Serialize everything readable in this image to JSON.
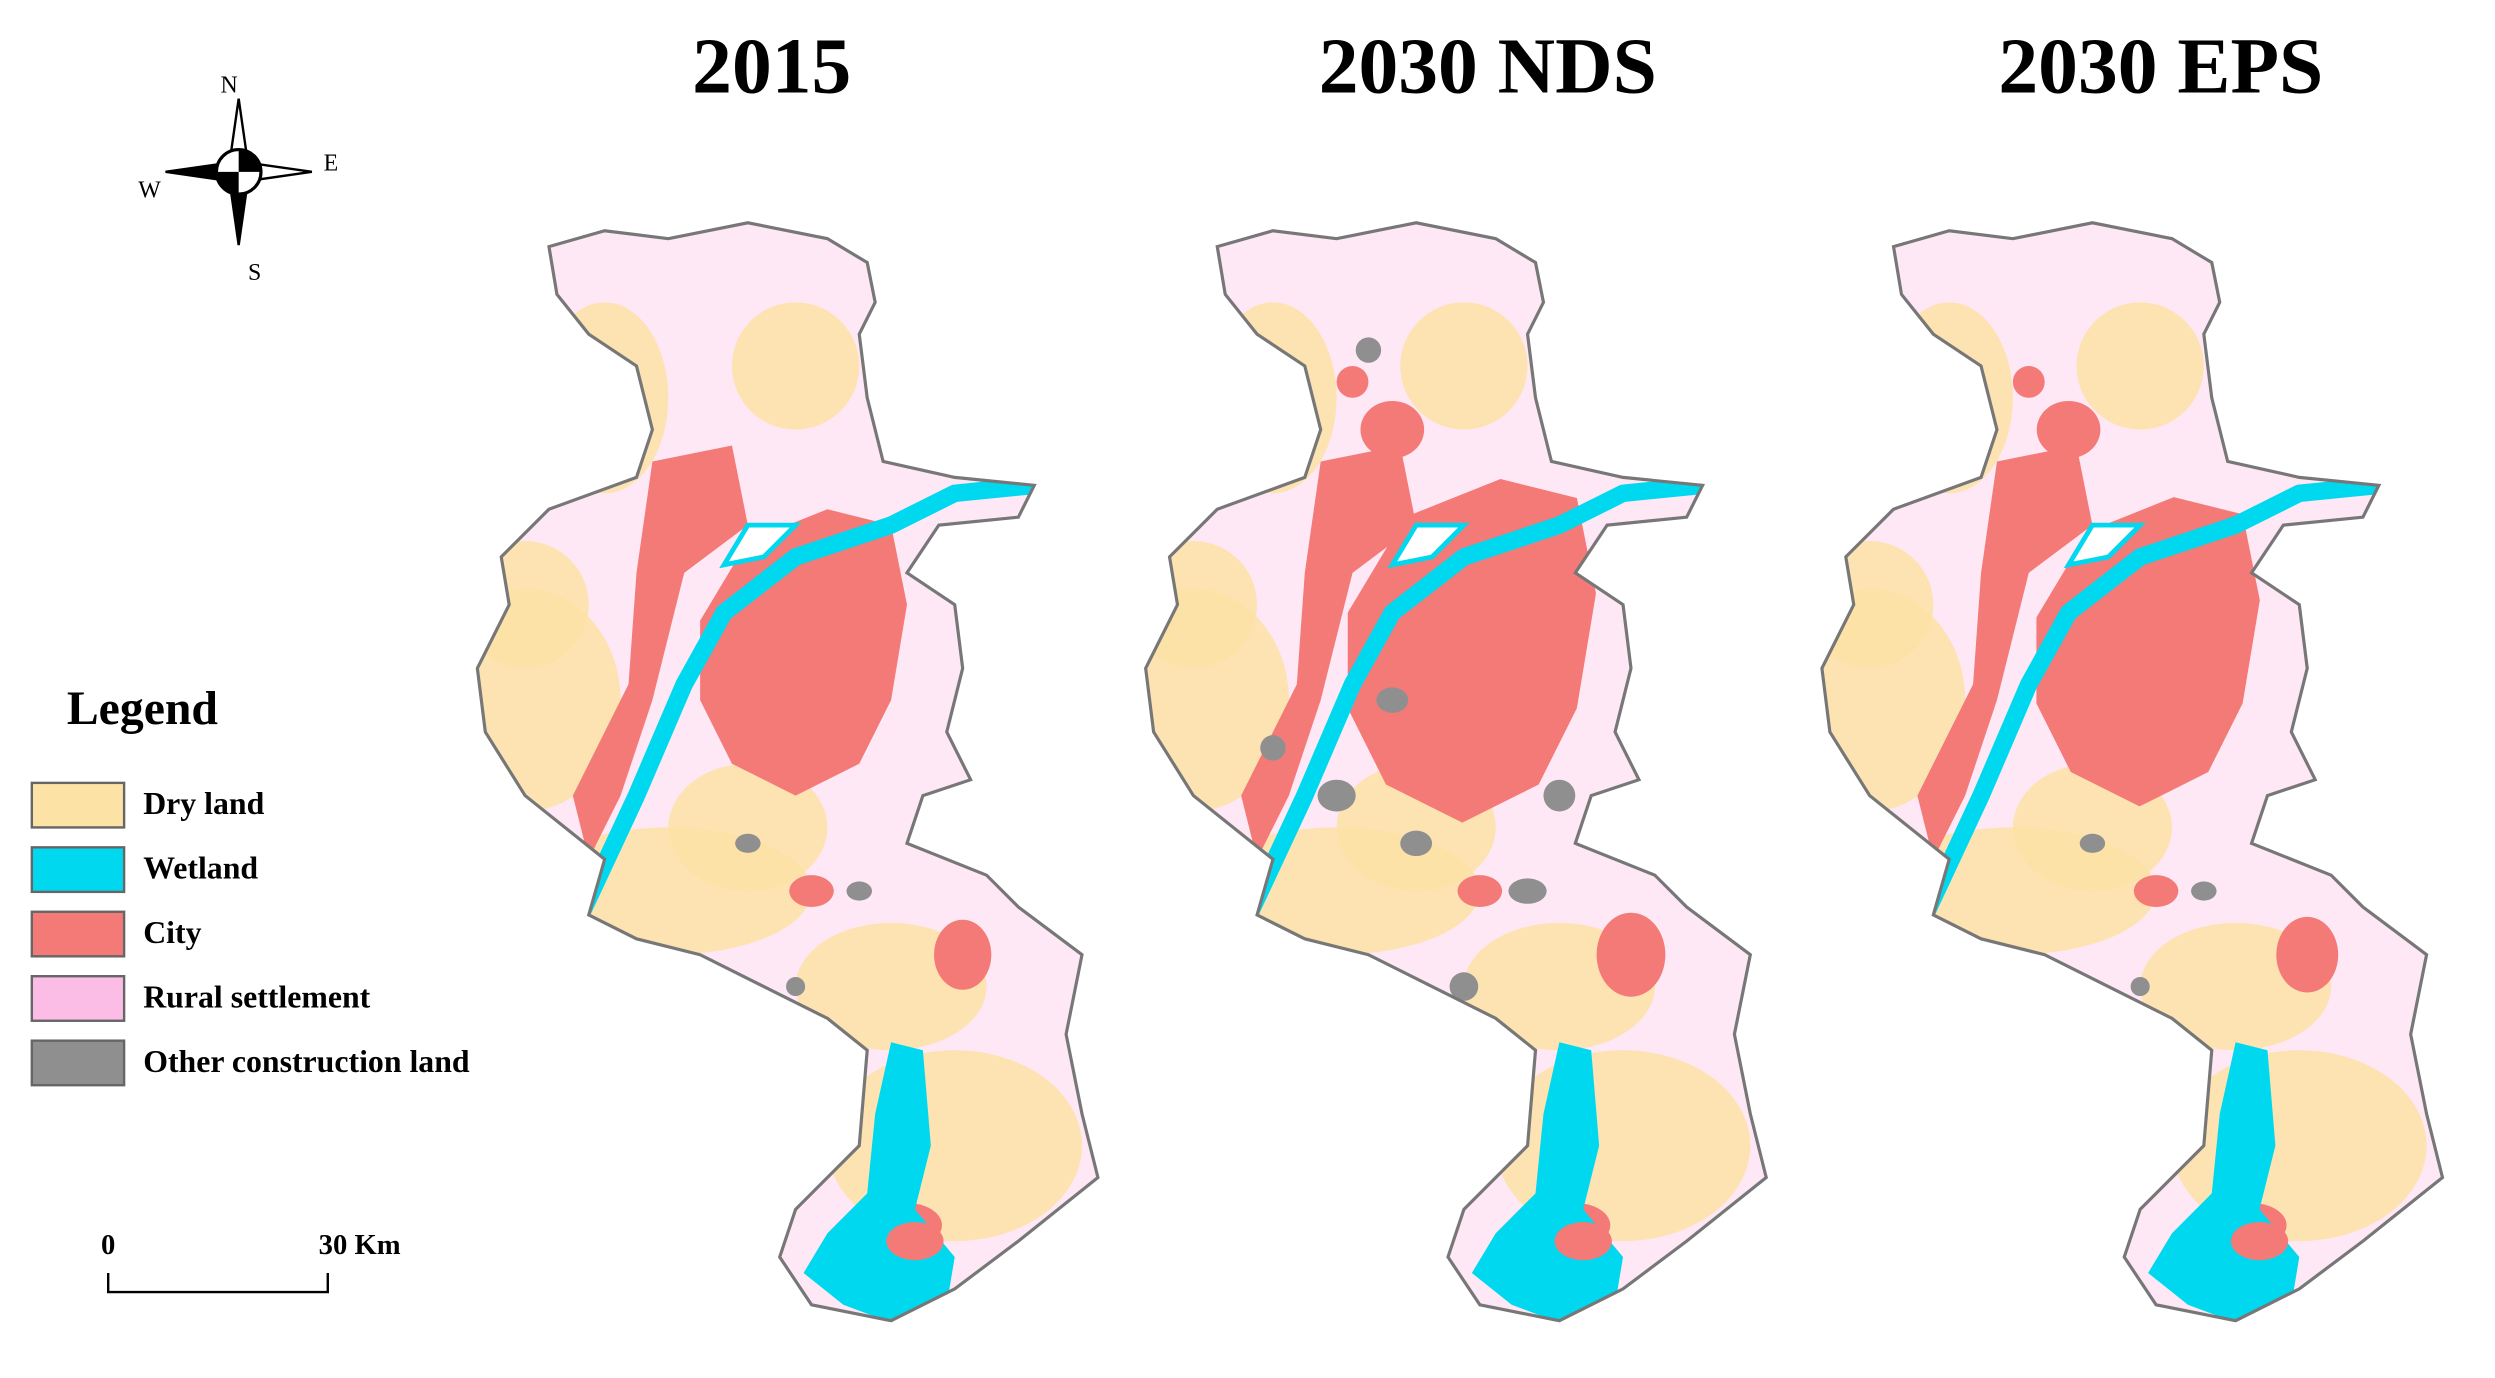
{
  "maps": [
    {
      "title": "2015"
    },
    {
      "title": "2030 NDS"
    },
    {
      "title": "2030 EPS"
    }
  ],
  "compass": {
    "n": "N",
    "e": "E",
    "s": "S",
    "w": "W"
  },
  "legend": {
    "title": "Legend",
    "items": [
      {
        "label": "Dry land",
        "color": "#fde2a6"
      },
      {
        "label": "Wetland",
        "color": "#00d8f0"
      },
      {
        "label": "City",
        "color": "#f47a78"
      },
      {
        "label": "Rural settlement",
        "color": "#fbbde6"
      },
      {
        "label": "Other construction land",
        "color": "#8f8f8f"
      }
    ]
  },
  "scale_bar": {
    "start": "0",
    "end": "30 Km"
  }
}
